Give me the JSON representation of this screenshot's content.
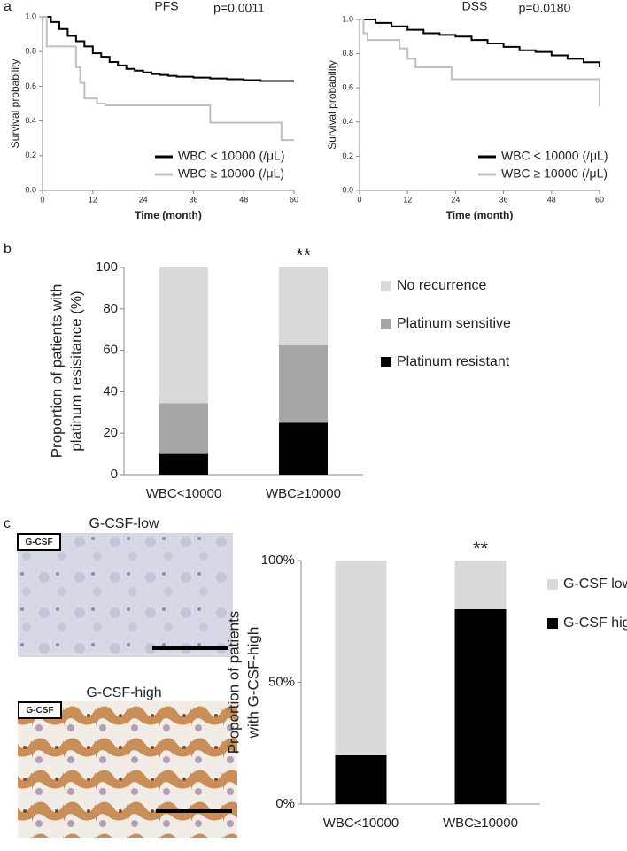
{
  "panels": [
    "a",
    "b",
    "c"
  ],
  "images": [
    {
      "title": "G-CSF-low",
      "tag": "G-CSF"
    },
    {
      "title": "G-CSF-high",
      "tag": "G-CSF"
    }
  ],
  "chart_data": [
    {
      "type": "line",
      "step": true,
      "title": "PFS",
      "annotation": "p=0.0011",
      "ylabel": "Survival probability",
      "xlabel": "Time (month)",
      "xlim": [
        0,
        60
      ],
      "xticks": [
        0,
        12,
        24,
        36,
        48,
        60
      ],
      "ylim": [
        0,
        1
      ],
      "yticks": [
        {
          "value": 0,
          "label": "0.0"
        },
        {
          "value": 0.2,
          "label": "0.2"
        },
        {
          "value": 0.4,
          "label": "0.4"
        },
        {
          "value": 0.6,
          "label": "0.6"
        },
        {
          "value": 0.8,
          "label": "0.8"
        },
        {
          "value": 1,
          "label": "1.0"
        }
      ],
      "series": [
        {
          "name": "WBC < 10000 (/μL)",
          "color": "#000000",
          "x": [
            0,
            2,
            4,
            6,
            8,
            10,
            12,
            14,
            16,
            18,
            20,
            22,
            24,
            26,
            28,
            30,
            32,
            36,
            40,
            44,
            48,
            52,
            56,
            60
          ],
          "values": [
            1.0,
            0.97,
            0.93,
            0.89,
            0.86,
            0.83,
            0.79,
            0.77,
            0.74,
            0.72,
            0.7,
            0.69,
            0.68,
            0.67,
            0.665,
            0.66,
            0.655,
            0.65,
            0.645,
            0.64,
            0.635,
            0.63,
            0.63,
            0.63
          ]
        },
        {
          "name": "WBC ≥ 10000 (/μL)",
          "color": "#bfbfbf",
          "x": [
            0,
            1,
            8,
            9,
            10,
            13,
            15,
            40,
            57,
            60
          ],
          "values": [
            1.0,
            0.83,
            0.71,
            0.62,
            0.53,
            0.5,
            0.49,
            0.39,
            0.29,
            0.29
          ]
        }
      ]
    },
    {
      "type": "line",
      "step": true,
      "title": "DSS",
      "annotation": "p=0.0180",
      "ylabel": "Survival probability",
      "xlabel": "Time (month)",
      "xlim": [
        0,
        60
      ],
      "xticks": [
        0,
        12,
        24,
        36,
        48,
        60
      ],
      "ylim": [
        0,
        1
      ],
      "yticks": [
        {
          "value": 0,
          "label": "0.0"
        },
        {
          "value": 0.2,
          "label": "0.2"
        },
        {
          "value": 0.4,
          "label": "0.4"
        },
        {
          "value": 0.6,
          "label": "0.6"
        },
        {
          "value": 0.8,
          "label": "0.8"
        },
        {
          "value": 1,
          "label": "1.0"
        }
      ],
      "series": [
        {
          "name": "WBC < 10000 (/μL)",
          "color": "#000000",
          "x": [
            0,
            4,
            8,
            12,
            16,
            20,
            24,
            28,
            32,
            36,
            40,
            44,
            48,
            52,
            56,
            60
          ],
          "values": [
            1.0,
            0.98,
            0.96,
            0.94,
            0.92,
            0.91,
            0.9,
            0.88,
            0.86,
            0.84,
            0.82,
            0.81,
            0.79,
            0.77,
            0.75,
            0.72
          ]
        },
        {
          "name": "WBC ≥ 10000 (/μL)",
          "color": "#bfbfbf",
          "x": [
            0,
            1,
            2,
            10,
            12,
            14,
            23,
            60
          ],
          "values": [
            1.0,
            0.92,
            0.88,
            0.83,
            0.77,
            0.72,
            0.65,
            0.49
          ]
        }
      ]
    },
    {
      "type": "bar",
      "stacked": true,
      "ylabel": [
        "Proportion of patients with",
        "platinum resisitance (%)"
      ],
      "annotation": "**",
      "categories": [
        "WBC<10000",
        "WBC≥10000"
      ],
      "ylim": [
        0,
        100
      ],
      "yticks": [
        0,
        20,
        40,
        60,
        80,
        100
      ],
      "series": [
        {
          "name": "Platinum resistant",
          "color": "#000000",
          "values": [
            10,
            25
          ]
        },
        {
          "name": "Platinum sensitive",
          "color": "#a6a6a6",
          "values": [
            24.5,
            37.5
          ]
        },
        {
          "name": "No recurrence",
          "color": "#d9d9d9",
          "values": [
            65.5,
            37.5
          ]
        }
      ]
    },
    {
      "type": "bar",
      "stacked": true,
      "ylabel": [
        "Proportion of patients",
        "with G-CSF-high"
      ],
      "annotation": "**",
      "categories": [
        "WBC<10000",
        "WBC≥10000"
      ],
      "ylim": [
        0,
        100
      ],
      "yticks": [
        {
          "value": 0,
          "label": "0%"
        },
        {
          "value": 50,
          "label": "50%"
        },
        {
          "value": 100,
          "label": "100%"
        }
      ],
      "series": [
        {
          "name": "G-CSF high",
          "color": "#000000",
          "values": [
            20,
            80
          ]
        },
        {
          "name": "G-CSF low",
          "color": "#d9d9d9",
          "values": [
            80,
            20
          ]
        }
      ]
    }
  ]
}
